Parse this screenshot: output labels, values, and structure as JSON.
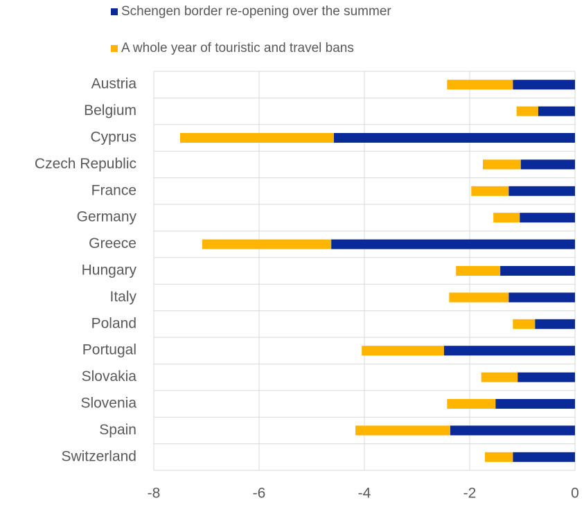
{
  "chart_data": {
    "type": "bar",
    "orientation": "horizontal",
    "stacked": true,
    "categories": [
      "Austria",
      "Belgium",
      "Cyprus",
      "Czech Republic",
      "France",
      "Germany",
      "Greece",
      "Hungary",
      "Italy",
      "Poland",
      "Portugal",
      "Slovakia",
      "Slovenia",
      "Spain",
      "Switzerland"
    ],
    "series": [
      {
        "name": "Schengen border re-opening over the summer",
        "color": "#0a2a9a",
        "values": [
          -1.18,
          -0.7,
          -4.58,
          -1.03,
          -1.26,
          -1.05,
          -4.63,
          -1.42,
          -1.26,
          -0.76,
          -2.49,
          -1.09,
          -1.51,
          -2.37,
          -1.18
        ]
      },
      {
        "name": "A whole year of touristic and travel bans",
        "color": "#ffb400",
        "values": [
          -1.25,
          -0.41,
          -2.92,
          -0.72,
          -0.71,
          -0.5,
          -2.45,
          -0.84,
          -1.13,
          -0.42,
          -1.56,
          -0.69,
          -0.92,
          -1.8,
          -0.53
        ]
      }
    ],
    "xlim": [
      -8,
      0
    ],
    "xticks": [
      -8,
      -6,
      -4,
      -2,
      0
    ],
    "grid": true
  }
}
